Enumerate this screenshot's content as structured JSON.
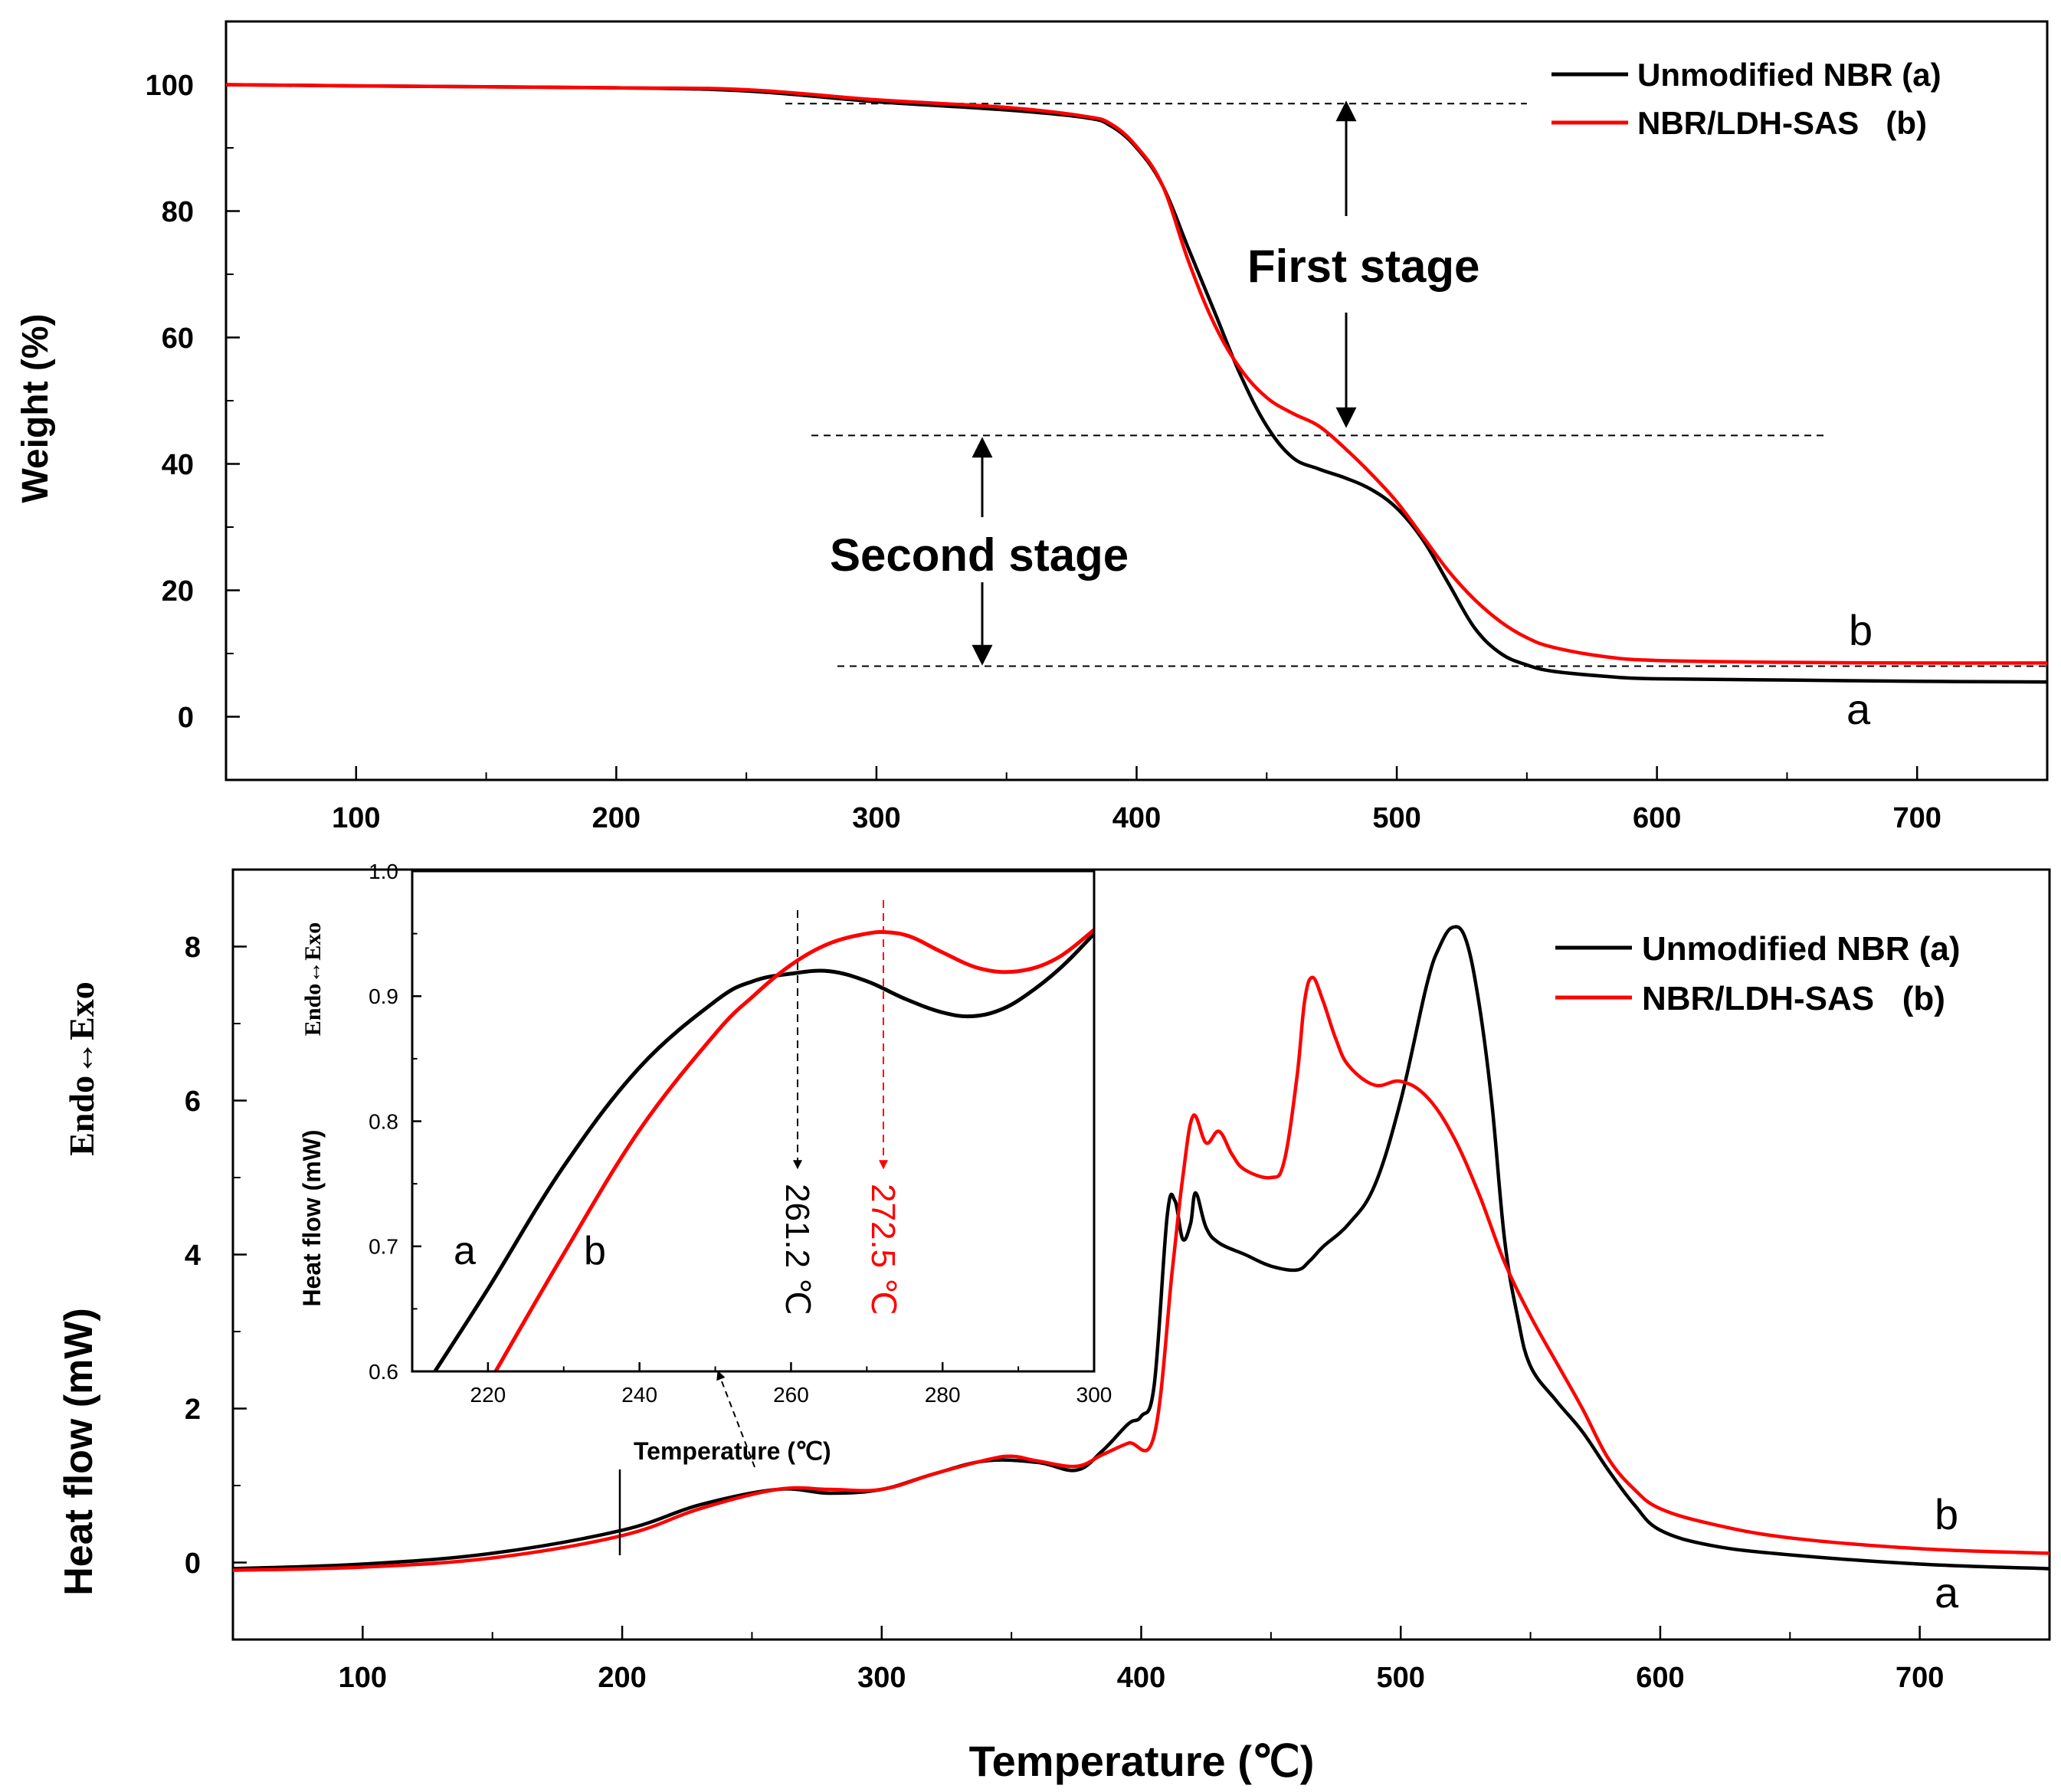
{
  "chart_data": [
    {
      "id": "tga",
      "type": "line",
      "title": "",
      "xlabel": "",
      "ylabel": "Weight (%)",
      "xlim": [
        50,
        750
      ],
      "ylim": [
        -10,
        110
      ],
      "xticks": [
        100,
        200,
        300,
        400,
        500,
        600,
        700
      ],
      "yticks": [
        0,
        20,
        40,
        60,
        80,
        100
      ],
      "grid": false,
      "legend": {
        "position": "top-right",
        "entries": [
          "Unmodified NBR (a)",
          "NBR/LDH-SAS   (b)"
        ]
      },
      "series": [
        {
          "name": "Unmodified NBR (a)",
          "label": "a",
          "color": "#000000",
          "x": [
            50,
            100,
            200,
            250,
            300,
            350,
            380,
            390,
            400,
            410,
            420,
            430,
            440,
            450,
            460,
            470,
            480,
            490,
            500,
            510,
            520,
            530,
            540,
            550,
            560,
            580,
            600,
            650,
            700,
            750
          ],
          "y": [
            100,
            99.8,
            99.5,
            99,
            97.3,
            96,
            94.8,
            93.5,
            90,
            84,
            74,
            64,
            54,
            46,
            41,
            39.2,
            37.8,
            36,
            33,
            28,
            21,
            14,
            10,
            8.2,
            7.2,
            6.4,
            6,
            5.8,
            5.6,
            5.5
          ]
        },
        {
          "name": "NBR/LDH-SAS   (b)",
          "label": "b",
          "color": "#ff0000",
          "x": [
            50,
            100,
            200,
            250,
            300,
            350,
            380,
            390,
            400,
            410,
            420,
            430,
            440,
            450,
            460,
            470,
            480,
            490,
            500,
            510,
            520,
            530,
            540,
            550,
            560,
            580,
            600,
            650,
            700,
            750
          ],
          "y": [
            100,
            99.8,
            99.5,
            99.2,
            97.6,
            96.4,
            95.0,
            93.8,
            90.2,
            84,
            72,
            62,
            55,
            50.5,
            48,
            46,
            42.5,
            38.5,
            34,
            28.5,
            23,
            18.5,
            15,
            12.5,
            11,
            9.5,
            8.9,
            8.6,
            8.5,
            8.5
          ]
        }
      ],
      "annotations": {
        "first_stage": "First stage",
        "second_stage": "Second stage",
        "curve_label_a": "a",
        "curve_label_b": "b",
        "dashed_levels": [
          97,
          44.5,
          8
        ]
      }
    },
    {
      "id": "dsc",
      "type": "line",
      "title": "",
      "xlabel": "Temperature (℃)",
      "ylabel": "Heat flow (mW)",
      "ylabel_secondary": "Endo↔Exo",
      "xlim": [
        50,
        750
      ],
      "ylim": [
        -1,
        9
      ],
      "xticks": [
        100,
        200,
        300,
        400,
        500,
        600,
        700
      ],
      "yticks": [
        0,
        2,
        4,
        6,
        8
      ],
      "grid": false,
      "legend": {
        "position": "top-right",
        "entries": [
          "Unmodified NBR (a)",
          "NBR/LDH-SAS   (b)"
        ]
      },
      "series": [
        {
          "name": "Unmodified NBR (a)",
          "label": "a",
          "color": "#000000",
          "x": [
            50,
            100,
            150,
            200,
            230,
            260,
            280,
            300,
            320,
            340,
            360,
            375,
            385,
            395,
            400,
            405,
            410,
            413,
            416,
            419,
            421,
            425,
            430,
            440,
            450,
            460,
            465,
            470,
            480,
            490,
            500,
            510,
            515,
            520,
            525,
            530,
            535,
            540,
            545,
            550,
            560,
            570,
            580,
            590,
            600,
            620,
            650,
            700,
            750
          ],
          "y": [
            -0.08,
            -0.02,
            0.12,
            0.42,
            0.75,
            0.95,
            0.9,
            0.95,
            1.15,
            1.32,
            1.3,
            1.2,
            1.45,
            1.8,
            1.9,
            2.3,
            4.5,
            4.7,
            4.2,
            4.4,
            4.8,
            4.35,
            4.15,
            4.0,
            3.85,
            3.8,
            3.92,
            4.1,
            4.4,
            4.9,
            6.0,
            7.5,
            8.0,
            8.25,
            8.1,
            7.3,
            6.0,
            4.2,
            3.2,
            2.55,
            2.1,
            1.7,
            1.2,
            0.75,
            0.42,
            0.22,
            0.1,
            -0.02,
            -0.08
          ]
        },
        {
          "name": "NBR/LDH-SAS   (b)",
          "label": "b",
          "color": "#ff0000",
          "x": [
            50,
            100,
            150,
            200,
            230,
            260,
            280,
            300,
            320,
            340,
            350,
            360,
            375,
            385,
            395,
            405,
            412,
            416,
            420,
            425,
            430,
            435,
            440,
            450,
            455,
            460,
            463,
            466,
            470,
            475,
            480,
            490,
            500,
            510,
            520,
            530,
            540,
            550,
            560,
            570,
            580,
            590,
            600,
            620,
            650,
            700,
            750
          ],
          "y": [
            -0.1,
            -0.06,
            0.06,
            0.35,
            0.7,
            0.95,
            0.95,
            0.95,
            1.15,
            1.33,
            1.38,
            1.32,
            1.25,
            1.4,
            1.55,
            1.65,
            3.8,
            5.0,
            5.8,
            5.45,
            5.6,
            5.3,
            5.1,
            5.0,
            5.2,
            6.3,
            7.3,
            7.6,
            7.3,
            6.8,
            6.45,
            6.2,
            6.25,
            6.05,
            5.55,
            4.8,
            3.9,
            3.2,
            2.6,
            2.0,
            1.35,
            0.95,
            0.7,
            0.5,
            0.32,
            0.18,
            0.12
          ]
        }
      ],
      "annotations": {
        "curve_label_a": "a",
        "curve_label_b": "b",
        "tick_mark_at": 200
      },
      "inset": {
        "type": "line",
        "xlabel": "Temperature (℃)",
        "ylabel": "Heat flow (mW)",
        "ylabel_secondary": "Endo↔Exo",
        "xlim": [
          210,
          300
        ],
        "ylim": [
          0.6,
          1.0
        ],
        "xticks": [
          220,
          240,
          260,
          280,
          300
        ],
        "yticks": [
          "0.6",
          "0.7",
          "0.8",
          "0.9",
          "1.0"
        ],
        "series": [
          {
            "name": "a",
            "label": "a",
            "color": "#000000",
            "x": [
              213,
              220,
              230,
              240,
              250,
              255,
              260,
              265,
              270,
              275,
              280,
              284,
              288,
              292,
              296,
              300
            ],
            "y": [
              0.6,
              0.666,
              0.764,
              0.843,
              0.896,
              0.912,
              0.918,
              0.92,
              0.912,
              0.898,
              0.887,
              0.884,
              0.89,
              0.905,
              0.925,
              0.95
            ]
          },
          {
            "name": "b",
            "label": "b",
            "color": "#ff0000",
            "x": [
              221,
              230,
              240,
              250,
              255,
              260,
              265,
              270,
              273,
              276,
              280,
              285,
              290,
              295,
              300
            ],
            "y": [
              0.6,
              0.694,
              0.793,
              0.87,
              0.9,
              0.925,
              0.942,
              0.95,
              0.951,
              0.947,
              0.935,
              0.922,
              0.92,
              0.93,
              0.953
            ]
          }
        ],
        "peak_labels": [
          {
            "value": 261.2,
            "text": "261.2 ℃",
            "color": "#000000"
          },
          {
            "value": 272.5,
            "text": "272.5 ℃",
            "color": "#ff0000"
          }
        ],
        "curve_label_a": "a",
        "curve_label_b": "b"
      }
    }
  ]
}
